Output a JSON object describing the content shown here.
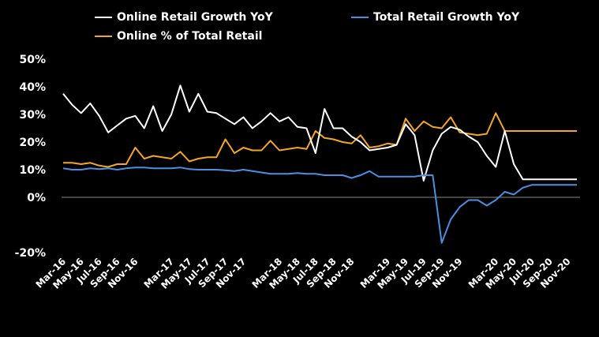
{
  "chart_data": {
    "type": "line",
    "ylim": [
      -20,
      50
    ],
    "yticks": [
      "50%",
      "40%",
      "30%",
      "20%",
      "10%",
      "0%",
      "-20%"
    ],
    "yticks_values": [
      50,
      40,
      30,
      20,
      10,
      0,
      -20
    ],
    "x": [
      "Mar-16",
      "Apr-16",
      "May-16",
      "Jun-16",
      "Jul-16",
      "Aug-16",
      "Sep-16",
      "Oct-16",
      "Nov-16",
      "Dec-16",
      "Jan-17",
      "Feb-17",
      "Mar-17",
      "Apr-17",
      "May-17",
      "Jun-17",
      "Jul-17",
      "Aug-17",
      "Sep-17",
      "Oct-17",
      "Nov-17",
      "Dec-17",
      "Jan-18",
      "Feb-18",
      "Mar-18",
      "Apr-18",
      "May-18",
      "Jun-18",
      "Jul-18",
      "Aug-18",
      "Sep-18",
      "Oct-18",
      "Nov-18",
      "Dec-18",
      "Jan-19",
      "Feb-19",
      "Mar-19",
      "Apr-19",
      "May-19",
      "Jun-19",
      "Jul-19",
      "Aug-19",
      "Sep-19",
      "Oct-19",
      "Nov-19",
      "Dec-19",
      "Jan-20",
      "Feb-20",
      "Mar-20",
      "Apr-20",
      "May-20",
      "Jun-20",
      "Jul-20",
      "Aug-20",
      "Sep-20",
      "Oct-20",
      "Nov-20",
      "Dec-20"
    ],
    "xtick_labels": [
      "Mar-16",
      "May-16",
      "Jul-16",
      "Sep-16",
      "Nov-16",
      "Mar-17",
      "May-17",
      "Jul-17",
      "Sep-17",
      "Nov-17",
      "Mar-18",
      "May-18",
      "Jul-18",
      "Sep-18",
      "Nov-18",
      "Mar-19",
      "May-19",
      "Jul-19",
      "Sep-19",
      "Nov-19",
      "Mar-20",
      "May-20",
      "Jul-20",
      "Sep-20",
      "Nov-20"
    ],
    "series": [
      {
        "name": "Online Retail Growth YoY",
        "color": "#ffffff",
        "values": [
          37.5,
          33.5,
          30.5,
          34,
          29.5,
          23.5,
          26,
          28.5,
          29.5,
          25,
          33,
          24,
          30,
          40.5,
          31,
          37.5,
          31,
          30.5,
          28.5,
          26.5,
          29,
          25,
          27.5,
          30.5,
          27.5,
          29,
          25.5,
          25,
          16,
          32,
          25,
          25,
          22,
          20,
          17,
          17.5,
          18,
          19,
          26.5,
          22.5,
          6,
          17,
          23,
          25.5,
          24.5,
          22,
          20,
          15,
          11,
          24,
          12,
          6.5,
          6.5,
          6.5,
          6.5,
          6.5,
          6.5,
          6.5
        ]
      },
      {
        "name": "Total Retail Growth YoY",
        "color": "#4a90e2",
        "values": [
          10.5,
          10,
          10,
          10.5,
          10.2,
          10.5,
          10,
          10.5,
          10.8,
          10.8,
          10.5,
          10.5,
          10.5,
          10.8,
          10.2,
          10,
          10,
          10,
          9.8,
          9.5,
          10,
          9.5,
          9,
          8.5,
          8.5,
          8.5,
          8.8,
          8.5,
          8.5,
          8,
          8,
          8,
          7,
          8,
          9.5,
          7.5,
          7.5,
          7.5,
          7.5,
          7.5,
          8,
          8,
          -16.5,
          -8,
          -3.5,
          -1,
          -1,
          -3,
          -1,
          2,
          1,
          3.5,
          4.5,
          4.5,
          4.5,
          4.5,
          4.5,
          4.5
        ]
      },
      {
        "name": "Online % of Total Retail",
        "color": "#f5a623",
        "values": [
          12.5,
          12.5,
          12,
          12.5,
          11.5,
          11,
          12,
          12,
          18,
          14,
          15,
          14.5,
          14,
          16.5,
          13,
          14,
          14.5,
          14.5,
          21,
          16,
          18,
          17,
          17,
          20.5,
          17,
          17.5,
          18,
          17.5,
          24,
          21.5,
          21,
          20,
          19.5,
          22.5,
          18,
          18.5,
          19.5,
          19,
          28.5,
          24,
          27.5,
          25.5,
          25,
          29,
          23.5,
          23,
          22.5,
          23,
          30.5,
          24,
          24,
          24,
          24,
          24,
          24,
          24,
          24,
          24
        ]
      }
    ]
  }
}
